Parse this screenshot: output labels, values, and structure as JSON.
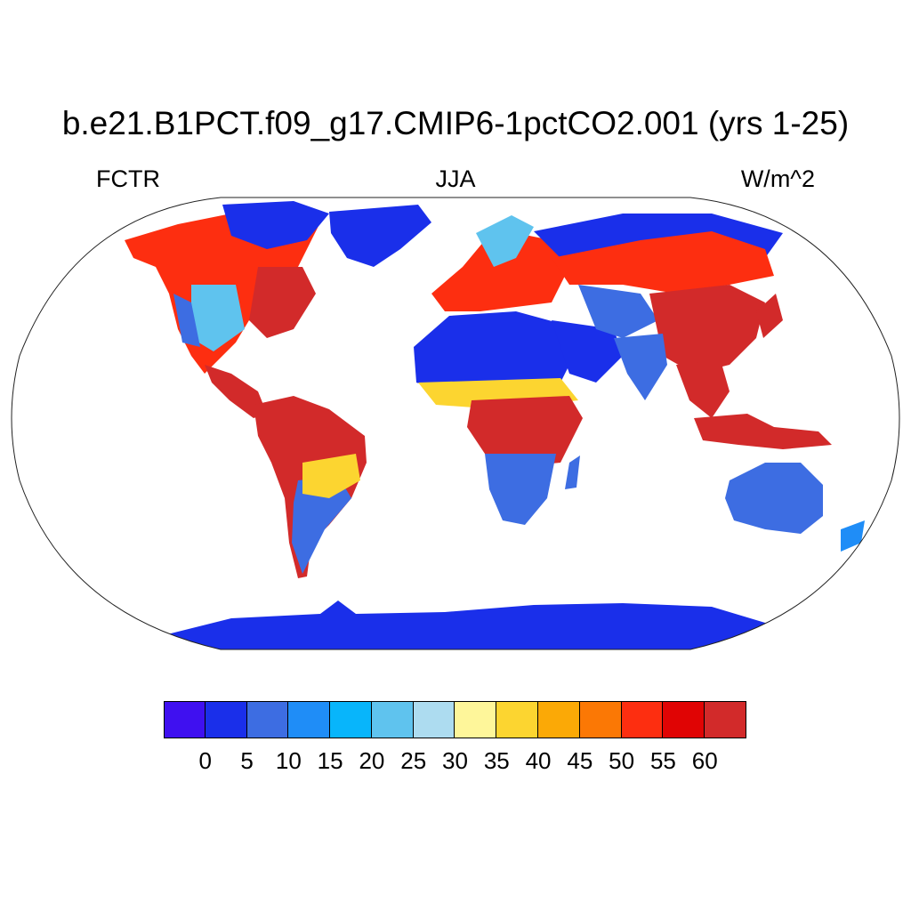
{
  "header": {
    "title": "b.e21.B1PCT.f09_g17.CMIP6-1pctCO2.001 (yrs 1-25)",
    "left": "FCTR",
    "center": "JJA",
    "right": "W/m^2"
  },
  "colorbar": {
    "colors": [
      "#3f10f0",
      "#1a2fea",
      "#3d6de2",
      "#1f8df7",
      "#08b5fb",
      "#5fc3ee",
      "#addcf0",
      "#fef69a",
      "#fcd530",
      "#fba906",
      "#fb7805",
      "#fd2e10",
      "#e00404",
      "#d22a2a"
    ],
    "labels": [
      "0",
      "5",
      "10",
      "15",
      "20",
      "25",
      "30",
      "35",
      "40",
      "45",
      "50",
      "55",
      "60"
    ]
  },
  "map": {
    "projection": "Robinson",
    "land_colors": {
      "low": "#1a2fea",
      "mid": "#3d6de2",
      "light": "#5fc3ee",
      "warm": "#fcd530",
      "orange": "#fb7805",
      "red": "#fd2e10",
      "darkred": "#d22a2a"
    }
  }
}
